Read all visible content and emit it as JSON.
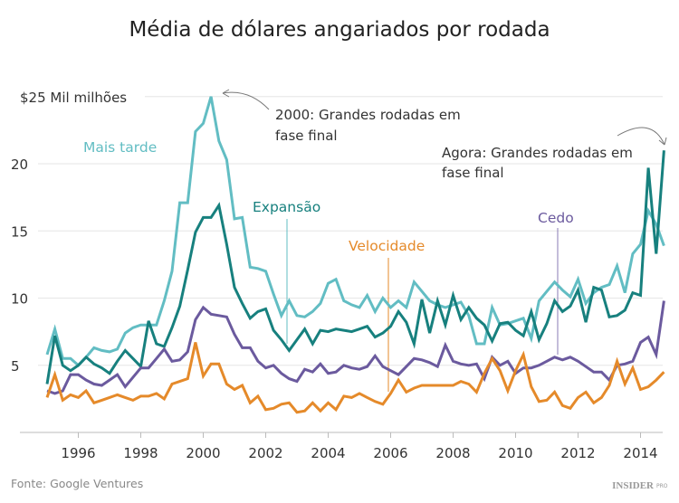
{
  "chart_data": {
    "type": "line",
    "title": "Média de dólares angariados por rodada",
    "ylabel": "",
    "y_unit_label": "$25 Mil milhões",
    "xlabel": "",
    "x_start": 1995,
    "x_step": 0.25,
    "xlim": [
      1995,
      2014.75
    ],
    "ylim": [
      0,
      25
    ],
    "x_ticks": [
      "1996",
      "1998",
      "2000",
      "2002",
      "2004",
      "2006",
      "2008",
      "2010",
      "2012",
      "2014"
    ],
    "y_ticks": [
      "5",
      "10",
      "15",
      "20"
    ],
    "grid": true,
    "series": [
      {
        "name": "Mais tarde",
        "color": "#62bdc3",
        "values": [
          5.8,
          7.7,
          5.5,
          5.5,
          5.0,
          5.6,
          6.3,
          6.1,
          6.0,
          6.2,
          7.4,
          7.8,
          8.0,
          8.0,
          8.0,
          9.8,
          12.0,
          17.1,
          17.1,
          22.4,
          23.0,
          25.0,
          21.7,
          20.3,
          15.9,
          16.0,
          12.3,
          12.2,
          12.0,
          10.3,
          8.7,
          9.8,
          8.7,
          8.6,
          9.0,
          9.6,
          11.1,
          11.4,
          9.8,
          9.5,
          9.3,
          10.2,
          9.0,
          10.0,
          9.3,
          9.8,
          9.3,
          11.2,
          10.5,
          9.8,
          9.5,
          9.3,
          9.5,
          9.7,
          8.7,
          6.6,
          6.6,
          9.3,
          8.0,
          8.1,
          8.3,
          8.5,
          7.0,
          9.8,
          10.5,
          11.2,
          10.6,
          10.1,
          11.4,
          9.6,
          10.4,
          10.8,
          11.0,
          12.4,
          10.4,
          13.3,
          14.0,
          16.5,
          15.5,
          13.9
        ]
      },
      {
        "name": "Expansão",
        "color": "#17807e",
        "values": [
          3.6,
          7.2,
          5.0,
          4.6,
          5.0,
          5.6,
          5.1,
          4.8,
          4.4,
          5.3,
          6.1,
          5.5,
          4.9,
          8.3,
          6.6,
          6.4,
          7.8,
          9.4,
          12.1,
          14.9,
          16.0,
          16.0,
          16.9,
          14.0,
          10.8,
          9.6,
          8.5,
          9.0,
          9.2,
          7.6,
          6.9,
          6.1,
          6.9,
          7.7,
          6.6,
          7.6,
          7.5,
          7.7,
          7.6,
          7.5,
          7.7,
          7.9,
          7.1,
          7.4,
          7.9,
          9.0,
          8.2,
          6.6,
          9.9,
          7.4,
          9.8,
          8.0,
          10.2,
          8.4,
          9.3,
          8.5,
          8.0,
          6.8,
          8.1,
          8.2,
          7.6,
          7.2,
          9.0,
          6.9,
          8.1,
          9.8,
          9.0,
          9.4,
          10.6,
          8.2,
          10.8,
          10.6,
          8.6,
          8.7,
          9.1,
          10.4,
          10.2,
          19.7,
          13.3,
          21.0
        ]
      },
      {
        "name": "Cedo",
        "color": "#6b5a9e",
        "values": [
          3.1,
          2.9,
          3.1,
          4.3,
          4.3,
          3.9,
          3.6,
          3.5,
          3.9,
          4.3,
          3.4,
          4.1,
          4.8,
          4.8,
          5.5,
          6.2,
          5.3,
          5.4,
          6.0,
          8.4,
          9.3,
          8.8,
          8.7,
          8.6,
          7.3,
          6.3,
          6.3,
          5.3,
          4.8,
          5.0,
          4.4,
          4.0,
          3.8,
          4.7,
          4.5,
          5.1,
          4.4,
          4.5,
          5.0,
          4.8,
          4.7,
          4.9,
          5.7,
          4.9,
          4.6,
          4.3,
          4.9,
          5.5,
          5.4,
          5.2,
          4.9,
          6.5,
          5.3,
          5.1,
          5.0,
          5.1,
          4.0,
          5.6,
          5.0,
          5.3,
          4.4,
          4.8,
          4.8,
          5.0,
          5.3,
          5.6,
          5.4,
          5.6,
          5.3,
          4.9,
          4.5,
          4.5,
          3.9,
          5.0,
          5.1,
          5.3,
          6.7,
          7.1,
          5.8,
          9.8
        ]
      },
      {
        "name": "Velocidade",
        "color": "#e58a2a",
        "values": [
          2.6,
          4.3,
          2.4,
          2.8,
          2.6,
          3.1,
          2.2,
          2.4,
          2.6,
          2.8,
          2.6,
          2.4,
          2.7,
          2.7,
          2.9,
          2.5,
          3.6,
          3.8,
          4.0,
          6.7,
          4.2,
          5.1,
          5.1,
          3.6,
          3.2,
          3.5,
          2.2,
          2.7,
          1.7,
          1.8,
          2.1,
          2.2,
          1.5,
          1.6,
          2.2,
          1.6,
          2.2,
          1.7,
          2.7,
          2.6,
          2.9,
          2.6,
          2.3,
          2.1,
          2.9,
          3.9,
          3.0,
          3.3,
          3.5,
          3.5,
          3.5,
          3.5,
          3.5,
          3.8,
          3.6,
          3.0,
          4.4,
          5.5,
          4.6,
          3.1,
          4.6,
          5.8,
          3.4,
          2.3,
          2.4,
          3.0,
          2.0,
          1.8,
          2.6,
          3.0,
          2.2,
          2.6,
          3.5,
          5.3,
          3.6,
          4.8,
          3.2,
          3.4,
          3.9,
          4.5
        ]
      }
    ],
    "annotations": [
      {
        "text_line1": "2000: Grandes rodadas em",
        "text_line2": "fase final"
      },
      {
        "text_line1": "Agora: Grandes rodadas em",
        "text_line2": "fase final"
      }
    ]
  },
  "source": "Fonte: Google Ventures",
  "brand": "INSIDER",
  "brand_suffix": "PRO"
}
